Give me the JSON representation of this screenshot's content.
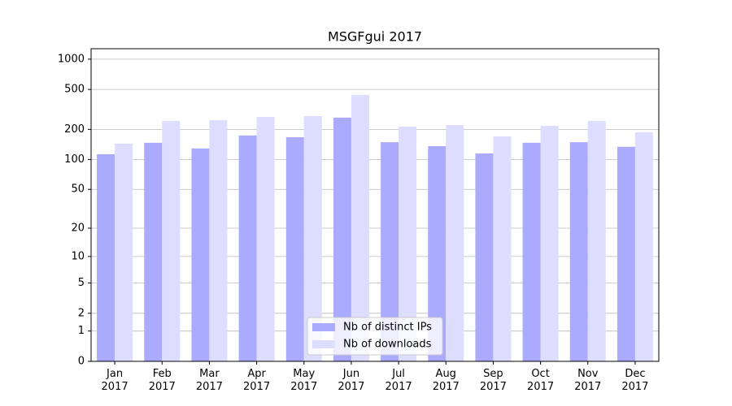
{
  "chart_data": {
    "type": "bar",
    "title": "MSGFgui 2017",
    "categories": [
      "Jan\n2017",
      "Feb\n2017",
      "Mar\n2017",
      "Apr\n2017",
      "May\n2017",
      "Jun\n2017",
      "Jul\n2017",
      "Aug\n2017",
      "Sep\n2017",
      "Oct\n2017",
      "Nov\n2017",
      "Dec\n2017"
    ],
    "series": [
      {
        "name": "Nb of distinct IPs",
        "color": "#aaaaff",
        "values": [
          113,
          147,
          129,
          174,
          167,
          262,
          149,
          136,
          115,
          147,
          149,
          134
        ]
      },
      {
        "name": "Nb of downloads",
        "color": "#ddddff",
        "values": [
          144,
          243,
          247,
          266,
          271,
          441,
          213,
          221,
          170,
          217,
          243,
          187
        ]
      }
    ],
    "yscale": "log1p",
    "ylim": [
      0,
      1270
    ],
    "yticks": [
      0,
      1,
      2,
      5,
      10,
      20,
      50,
      100,
      200,
      500,
      1000
    ],
    "grid": true,
    "legend": "lower center"
  }
}
